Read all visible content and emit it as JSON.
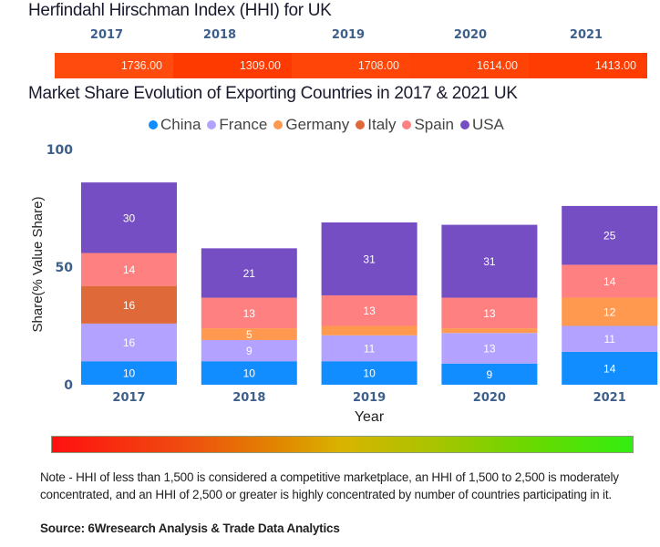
{
  "hhi": {
    "title": "Herfindahl Hirschman Index (HHI) for UK",
    "years": [
      "2017",
      "2018",
      "2019",
      "2020",
      "2021"
    ],
    "values": [
      "1736.00",
      "1309.00",
      "1708.00",
      "1614.00",
      "1413.00"
    ],
    "cell_colors": [
      "#ff4b0e",
      "#ff3a00",
      "#ff4508",
      "#ff4206",
      "#ff3d02"
    ]
  },
  "chart_data": {
    "type": "bar",
    "stacked": true,
    "title": "Market Share Evolution of Exporting Countries in 2017 & 2021 UK",
    "xlabel": "Year",
    "ylabel": "Share(% Value Share)",
    "ylim": [
      0,
      100
    ],
    "yticks": [
      "0",
      "50",
      "100"
    ],
    "categories": [
      "2017",
      "2018",
      "2019",
      "2020",
      "2021"
    ],
    "legend_position": "top-center",
    "series": [
      {
        "name": "China",
        "color": "#118dff",
        "values": [
          10,
          10,
          10,
          9,
          14
        ],
        "labels": [
          "10",
          "10",
          "10",
          "9",
          "14"
        ]
      },
      {
        "name": "France",
        "color": "#b3a2ff",
        "values": [
          16,
          9,
          11,
          13,
          11
        ],
        "labels": [
          "16",
          "9",
          "11",
          "13",
          "11"
        ]
      },
      {
        "name": "Germany",
        "color": "#fe994f",
        "values": [
          0,
          5,
          4,
          2,
          12
        ],
        "labels": [
          "",
          "5",
          "",
          "",
          "12"
        ]
      },
      {
        "name": "Italy",
        "color": "#e0693a",
        "values": [
          16,
          0,
          0,
          0,
          0
        ],
        "labels": [
          "16",
          "",
          "",
          "",
          ""
        ]
      },
      {
        "name": "Spain",
        "color": "#ff8080",
        "values": [
          14,
          13,
          13,
          13,
          14
        ],
        "labels": [
          "14",
          "13",
          "13",
          "13",
          "14"
        ]
      },
      {
        "name": "USA",
        "color": "#744ec2",
        "values": [
          30,
          21,
          31,
          31,
          25
        ],
        "labels": [
          "30",
          "21",
          "31",
          "31",
          "25"
        ]
      }
    ]
  },
  "footer": {
    "note": "Note - HHI of less than 1,500 is considered a competitive marketplace, an HHI of 1,500 to 2,500 is moderately concentrated, and an HHI of 2,500 or greater is highly concentrated by number of countries participating in it.",
    "source": "Source: 6Wresearch Analysis & Trade Data Analytics"
  }
}
